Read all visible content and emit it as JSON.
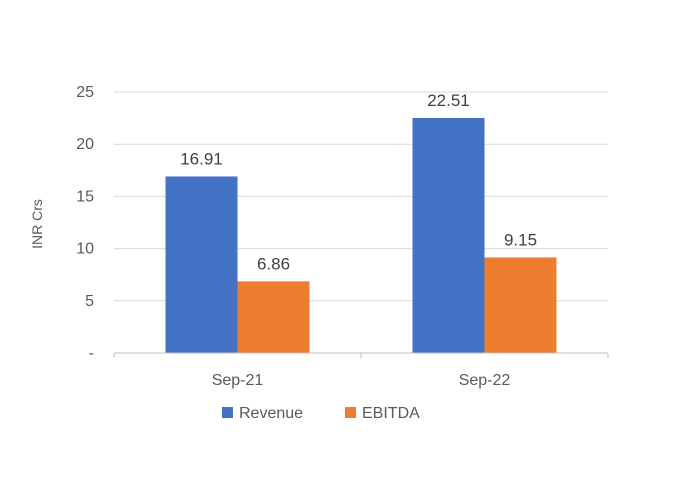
{
  "chart_data": {
    "type": "bar",
    "categories": [
      "Sep-21",
      "Sep-22"
    ],
    "series": [
      {
        "name": "Revenue",
        "values": [
          16.91,
          22.51
        ],
        "color": "#4472C4"
      },
      {
        "name": "EBITDA",
        "values": [
          6.86,
          9.15
        ],
        "color": "#ED7D31"
      }
    ],
    "data_labels": [
      [
        "16.91",
        "22.51"
      ],
      [
        "6.86",
        "9.15"
      ]
    ],
    "ylabel": "INR Crs",
    "ylim": [
      0,
      25
    ],
    "yticks": [
      0,
      5,
      10,
      15,
      20,
      25
    ],
    "ytick_labels": [
      "-",
      "5",
      "10",
      "15",
      "20",
      "25"
    ],
    "grid": true,
    "legend_position": "bottom"
  }
}
